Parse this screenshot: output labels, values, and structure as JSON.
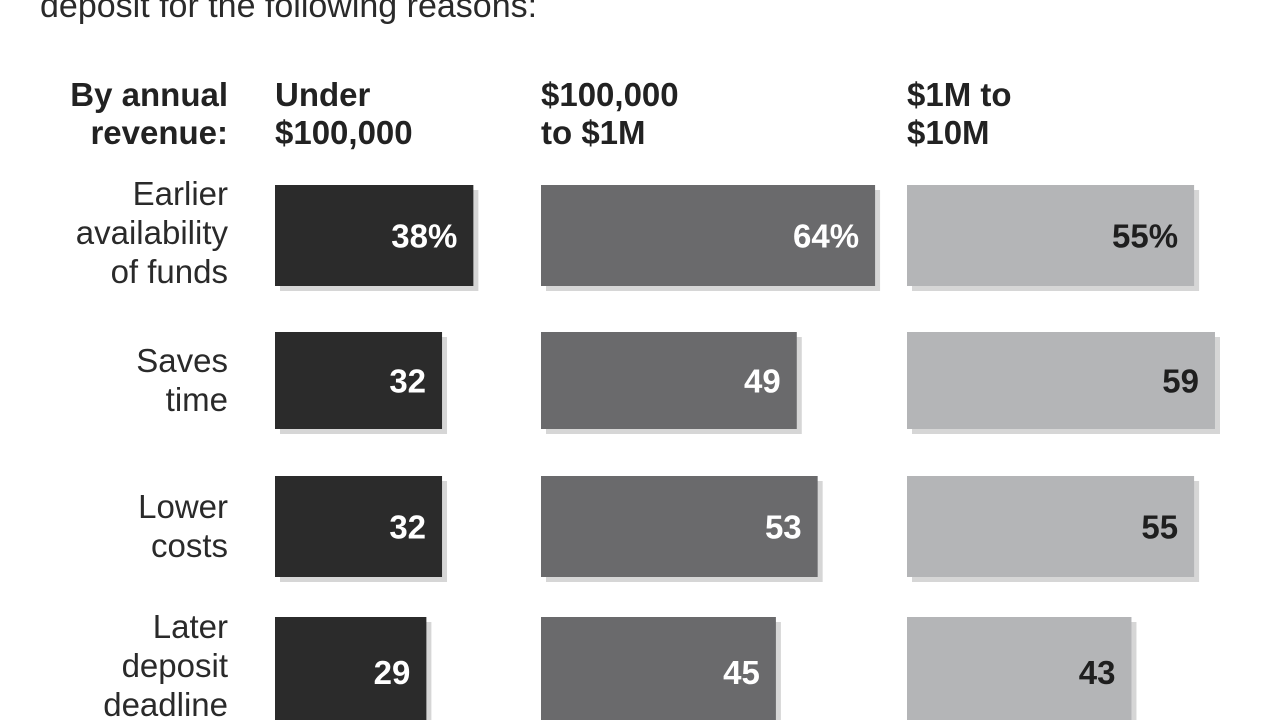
{
  "intro_text": "deposit for the following reasons:",
  "colors": {
    "under_100k": "#2b2b2b",
    "100k_to_1m": "#6a6a6c",
    "1m_to_10m": "#b4b5b7",
    "shadow": "#d6d6d6"
  },
  "chart_data": {
    "type": "bar",
    "orientation": "horizontal",
    "group_label": [
      "By annual",
      "revenue:"
    ],
    "categories": [
      [
        "Earlier",
        "availability",
        "of funds"
      ],
      [
        "Saves",
        "time"
      ],
      [
        "Lower",
        "costs"
      ],
      [
        "Later",
        "deposit",
        "deadline"
      ]
    ],
    "series": [
      {
        "name": "Under $100,000",
        "name_lines": [
          "Under",
          "$100,000"
        ],
        "values": [
          38,
          32,
          32,
          29
        ],
        "labels": [
          "38%",
          "32",
          "32",
          "29"
        ]
      },
      {
        "name": "$100,000 to $1M",
        "name_lines": [
          "$100,000",
          "to $1M"
        ],
        "values": [
          64,
          49,
          53,
          45
        ],
        "labels": [
          "64%",
          "49",
          "53",
          "45"
        ]
      },
      {
        "name": "$1M to $10M",
        "name_lines": [
          "$1M to",
          "$10M"
        ],
        "values": [
          55,
          59,
          55,
          43
        ],
        "labels": [
          "55%",
          "59",
          "55",
          "43"
        ]
      }
    ],
    "unit": "%"
  }
}
